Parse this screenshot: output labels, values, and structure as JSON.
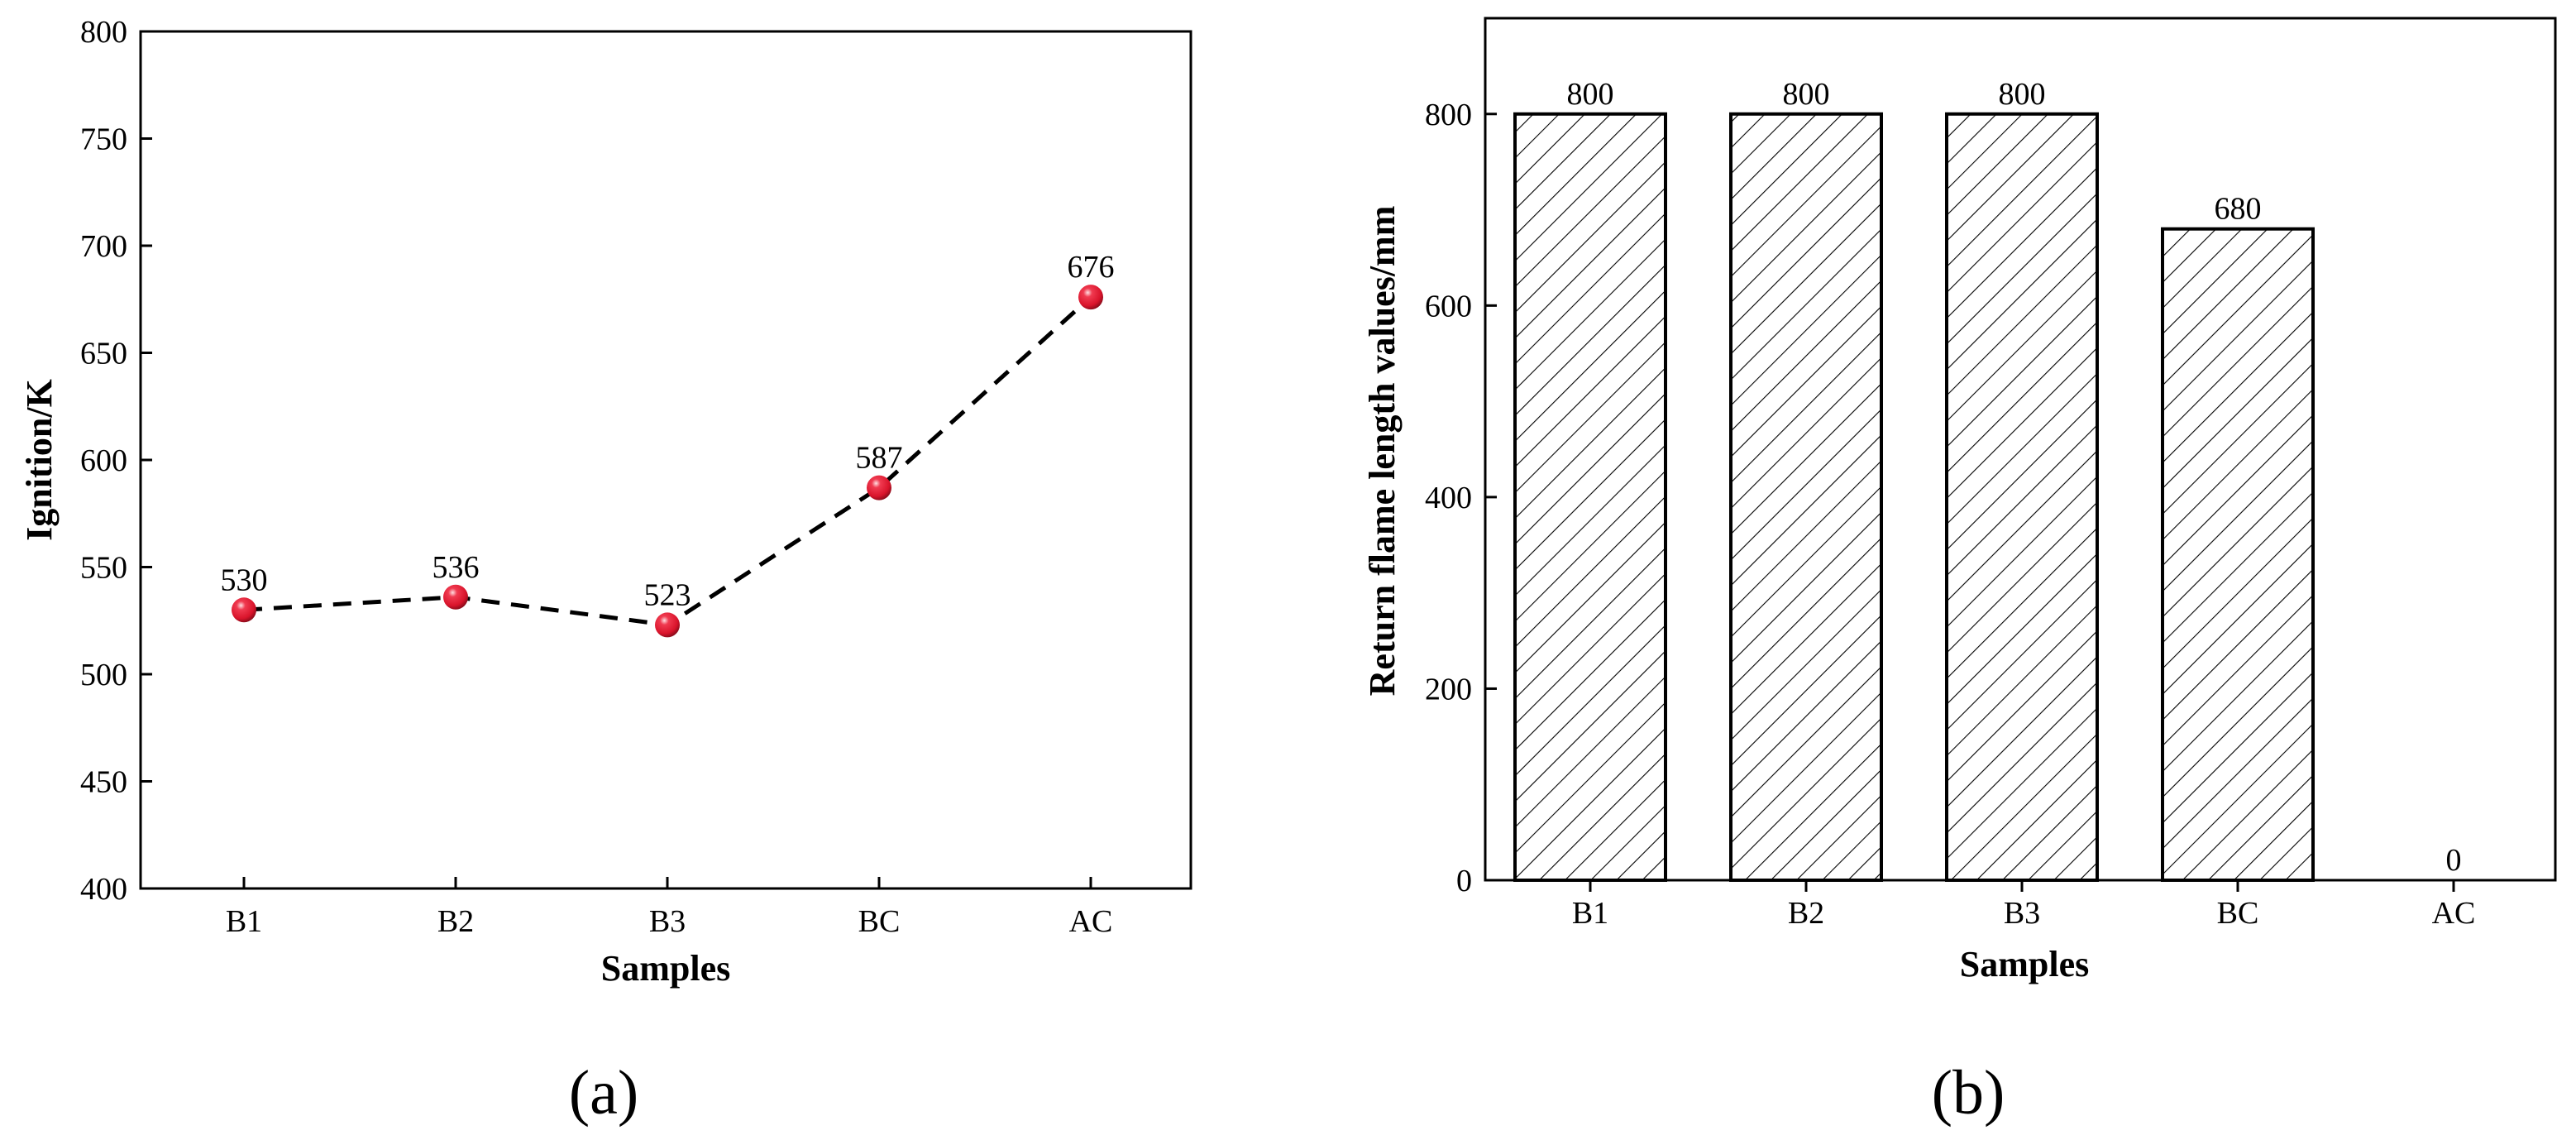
{
  "chart_data": [
    {
      "type": "line",
      "panel_label": "(a)",
      "categories": [
        "B1",
        "B2",
        "B3",
        "BC",
        "AC"
      ],
      "values": [
        530,
        536,
        523,
        587,
        676
      ],
      "data_labels": [
        "530",
        "536",
        "523",
        "587",
        "676"
      ],
      "xlabel": "Samples",
      "ylabel": "Ignition/K",
      "ylim": [
        400,
        800
      ],
      "yticks": [
        400,
        450,
        500,
        550,
        600,
        650,
        700,
        750,
        800
      ],
      "line_style": "dashed",
      "marker_color": "#d9142b",
      "grid": false,
      "legend": "none"
    },
    {
      "type": "bar",
      "panel_label": "(b)",
      "categories": [
        "B1",
        "B2",
        "B3",
        "BC",
        "AC"
      ],
      "values": [
        800,
        800,
        800,
        680,
        0
      ],
      "data_labels": [
        "800",
        "800",
        "800",
        "680",
        "0"
      ],
      "xlabel": "Samples",
      "ylabel": "Return flame length values/mm",
      "ylim": [
        0,
        900
      ],
      "yticks": [
        0,
        200,
        400,
        600,
        800
      ],
      "bar_fill": "diagonal-hatch",
      "grid": false,
      "legend": "none"
    }
  ]
}
